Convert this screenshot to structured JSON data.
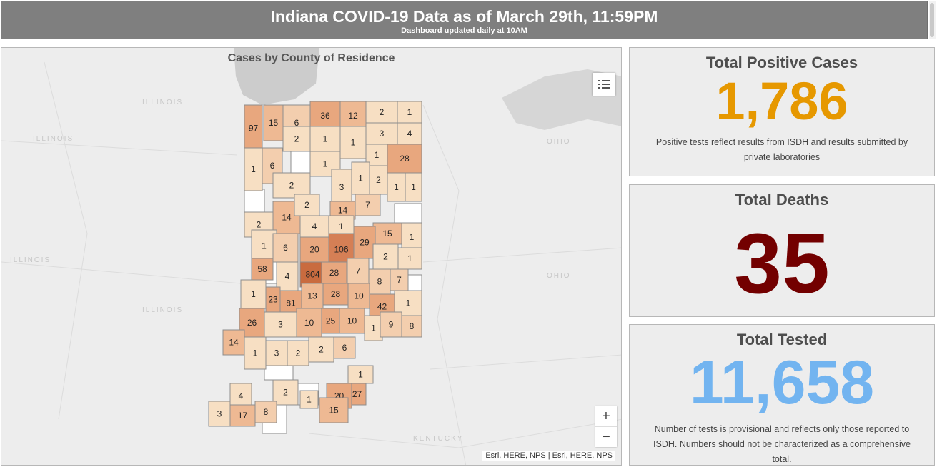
{
  "header": {
    "title": "Indiana COVID-19 Data as of March 29th, 11:59PM",
    "subtitle": "Dashboard updated daily at 10AM"
  },
  "map": {
    "title": "Cases by County of Residence",
    "attribution": "Esri, HERE, NPS | Esri, HERE, NPS",
    "zoom_in": "+",
    "zoom_out": "−",
    "legend_icon": "legend-list-icon",
    "state_labels": [
      "ILLINOIS",
      "ILLINOIS",
      "ILLINOIS",
      "ILLINOIS",
      "OHIO",
      "OHIO",
      "KENTUCKY"
    ],
    "county_counts": [
      "97",
      "15",
      "6",
      "36",
      "12",
      "2",
      "1",
      "2",
      "1",
      "1",
      "3",
      "4",
      "1",
      "28",
      "1",
      "6",
      "1",
      "2",
      "3",
      "1",
      "2",
      "1",
      "1",
      "2",
      "14",
      "14",
      "7",
      "2",
      "4",
      "1",
      "1",
      "15",
      "1",
      "6",
      "20",
      "106",
      "29",
      "2",
      "1",
      "58",
      "804",
      "28",
      "7",
      "4",
      "8",
      "7",
      "1",
      "23",
      "81",
      "13",
      "28",
      "10",
      "42",
      "1",
      "26",
      "3",
      "10",
      "25",
      "10",
      "1",
      "9",
      "8",
      "14",
      "1",
      "3",
      "2",
      "2",
      "6",
      "1",
      "27",
      "4",
      "2",
      "1",
      "20",
      "3",
      "17",
      "8",
      "15"
    ]
  },
  "stats": {
    "positive": {
      "title": "Total Positive Cases",
      "value": "1,786",
      "note": "Positive tests reflect results from ISDH and results submitted by private laboratories",
      "color": "#e69800"
    },
    "deaths": {
      "title": "Total Deaths",
      "value": "35",
      "color": "#730000"
    },
    "tested": {
      "title": "Total Tested",
      "value": "11,658",
      "note": "Number of tests is provisional and reflects only those reported to ISDH. Numbers should not be characterized as a comprehensive total.",
      "color": "#72b4f0"
    }
  }
}
